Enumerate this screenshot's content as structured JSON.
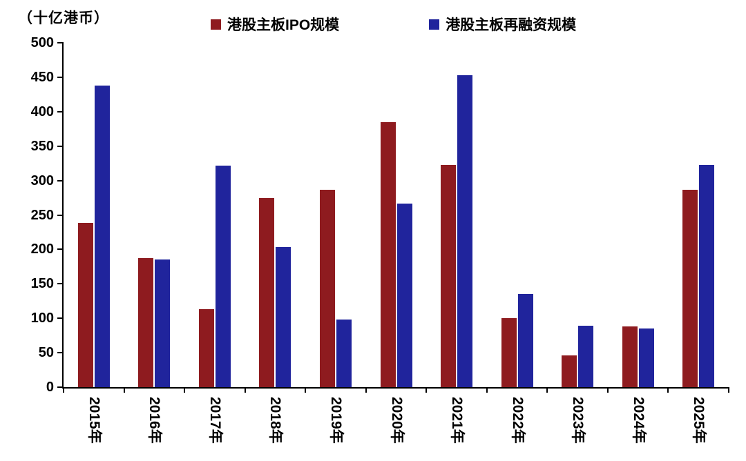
{
  "chart_data": {
    "type": "bar",
    "unit_label": "（十亿港币）",
    "categories": [
      "2015年",
      "2016年",
      "2017年",
      "2018年",
      "2019年",
      "2020年",
      "2021年",
      "2022年",
      "2023年",
      "2024年",
      "2025年"
    ],
    "series": [
      {
        "name": "港股主板IPO规模",
        "color": "#8e1b1f",
        "values": [
          238,
          187,
          113,
          275,
          287,
          385,
          323,
          100,
          46,
          88,
          287
        ]
      },
      {
        "name": "港股主板再融资规模",
        "color": "#20249c",
        "values": [
          438,
          185,
          322,
          203,
          98,
          267,
          453,
          135,
          89,
          85,
          323
        ]
      }
    ],
    "ylim": [
      0,
      500
    ],
    "ytick_step": 50,
    "yticks": [
      0,
      50,
      100,
      150,
      200,
      250,
      300,
      350,
      400,
      450,
      500
    ],
    "grid": false,
    "legend_position": "top",
    "axis_color": "#000000",
    "background_color": "#ffffff"
  }
}
